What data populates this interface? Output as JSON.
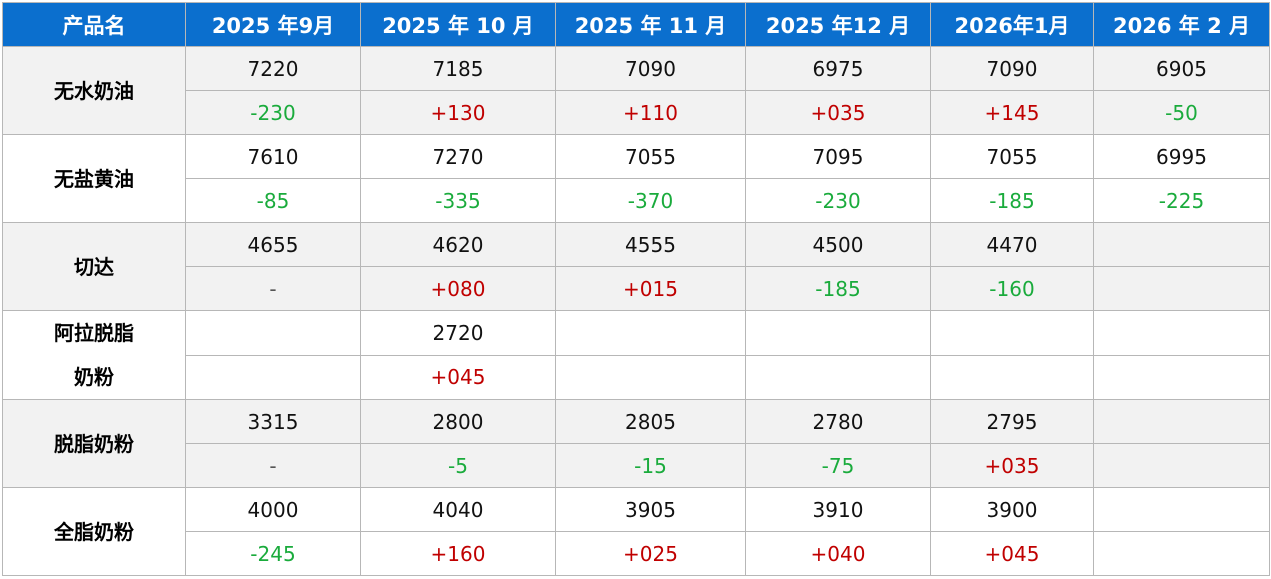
{
  "headers": [
    "产品名",
    "2025 年9月",
    "2025 年 10 月",
    "2025 年 11 月",
    "2025 年12 月",
    "2026年1月",
    "2026 年 2 月"
  ],
  "rows": [
    {
      "name_lines": [
        "无水奶油"
      ],
      "prices": [
        "7220",
        "7185",
        "7090",
        "6975",
        "7090",
        "6905"
      ],
      "changes": [
        "-230",
        "+130",
        "+110",
        "+035",
        "+145",
        "-50"
      ]
    },
    {
      "name_lines": [
        "无盐黄油"
      ],
      "prices": [
        "7610",
        "7270",
        "7055",
        "7095",
        "7055",
        "6995"
      ],
      "changes": [
        "-85",
        "-335",
        "-370",
        "-230",
        "-185",
        "-225"
      ]
    },
    {
      "name_lines": [
        "切达"
      ],
      "prices": [
        "4655",
        "4620",
        "4555",
        "4500",
        "4470",
        ""
      ],
      "changes": [
        "-",
        "+080",
        "+015",
        "-185",
        "-160",
        ""
      ]
    },
    {
      "name_lines": [
        "阿拉脱脂",
        "奶粉"
      ],
      "prices": [
        "",
        "2720",
        "",
        "",
        "",
        ""
      ],
      "changes": [
        "",
        "+045",
        "",
        "",
        "",
        ""
      ]
    },
    {
      "name_lines": [
        "脱脂奶粉"
      ],
      "prices": [
        "3315",
        "2800",
        "2805",
        "2780",
        "2795",
        ""
      ],
      "changes": [
        "-",
        "-5",
        "-15",
        "-75",
        "+035",
        ""
      ]
    },
    {
      "name_lines": [
        "全脂奶粉"
      ],
      "prices": [
        "4000",
        "4040",
        "3905",
        "3910",
        "3900",
        ""
      ],
      "changes": [
        "-245",
        "+160",
        "+025",
        "+040",
        "+045",
        ""
      ]
    }
  ],
  "colors": {
    "header_bg": "#0b6fce",
    "up": "#c00000",
    "down": "#1aab3c",
    "shade": "#f2f2f2"
  }
}
